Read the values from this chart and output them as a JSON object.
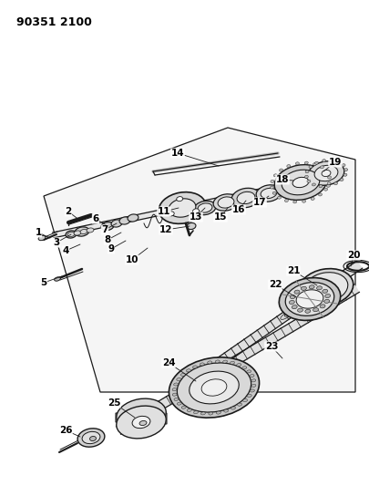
{
  "title": "90351 2100",
  "bg_color": "#ffffff",
  "line_color": "#1a1a1a",
  "label_color": "#000000",
  "fig_width": 4.05,
  "fig_height": 5.33,
  "dpi": 100
}
